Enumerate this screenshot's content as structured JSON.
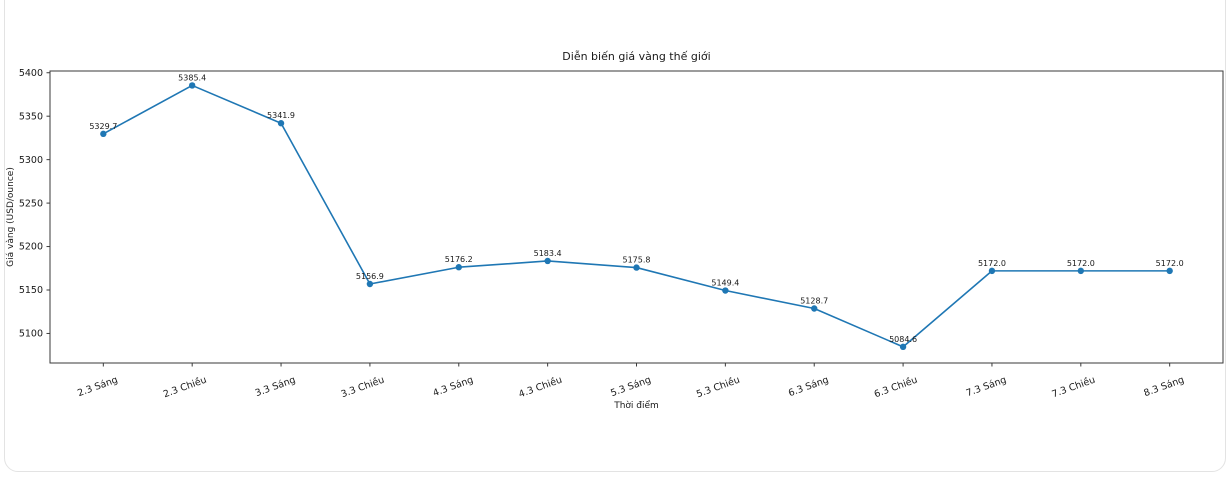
{
  "chart_data": {
    "type": "line",
    "title": "Diễn biến giá vàng thế giới",
    "xlabel": "Thời điểm",
    "ylabel": "Giá vàng (USD/ounce)",
    "categories": [
      "2.3 Sáng",
      "2.3 Chiều",
      "3.3 Sáng",
      "3.3 Chiều",
      "4.3 Sáng",
      "4.3 Chiều",
      "5.3 Sáng",
      "5.3 Chiều",
      "6.3 Sáng",
      "6.3 Chiều",
      "7.3 Sáng",
      "7.3 Chiều",
      "8.3 Sáng"
    ],
    "values": [
      5329.7,
      5385.4,
      5341.9,
      5156.9,
      5176.2,
      5183.4,
      5175.8,
      5149.4,
      5128.7,
      5084.6,
      5172.0,
      5172.0,
      5172.0
    ],
    "data_labels": [
      "5329.7",
      "5385.4",
      "5341.9",
      "5156.9",
      "5176.2",
      "5183.4",
      "5175.8",
      "5149.4",
      "5128.7",
      "5084.6",
      "5172.0",
      "5172.0",
      "5172.0"
    ],
    "yticks": [
      5100,
      5150,
      5200,
      5250,
      5300,
      5350,
      5400
    ],
    "ylim": [
      5066,
      5402
    ],
    "grid": false,
    "legend_position": "none",
    "line_color": "#1f77b4",
    "marker": "circle",
    "spine_color": "#3a3a3a",
    "text_color": "#1a1a1a",
    "xtick_rotation_deg": -20
  }
}
